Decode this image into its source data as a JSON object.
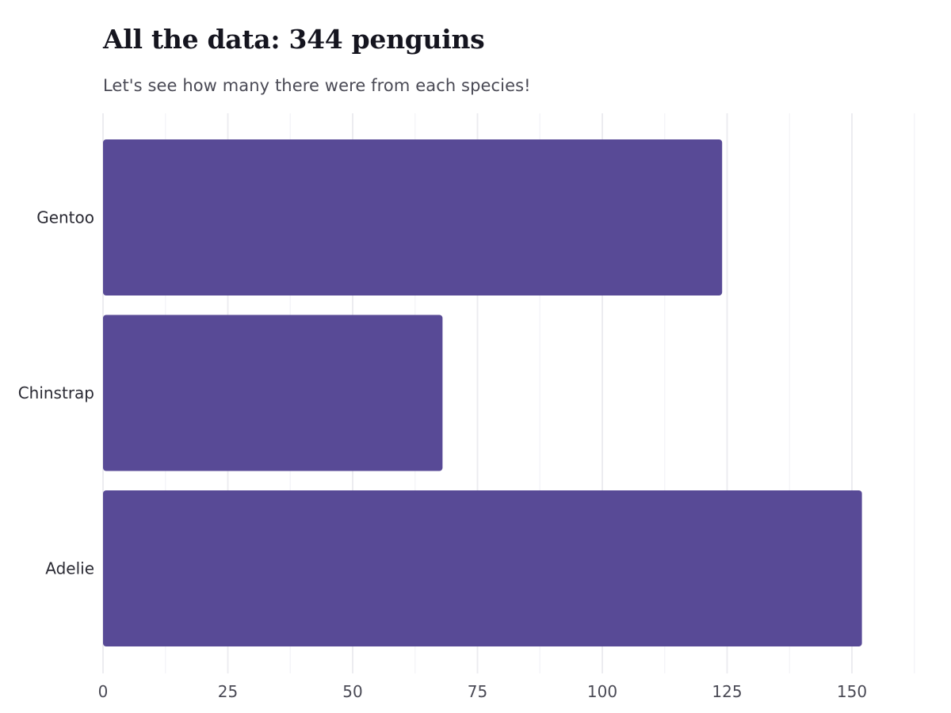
{
  "chart_data": {
    "type": "bar",
    "orientation": "horizontal",
    "title": "All the data: 344 penguins",
    "subtitle": "Let's see how many there were from each species!",
    "xlabel": "",
    "ylabel": "",
    "categories": [
      "Gentoo",
      "Chinstrap",
      "Adelie"
    ],
    "values": [
      124,
      68,
      152
    ],
    "xlim": [
      0,
      165
    ],
    "xticks": [
      0,
      25,
      50,
      75,
      100,
      125,
      150
    ],
    "xtick_labels": [
      "0",
      "25",
      "50",
      "75",
      "100",
      "125",
      "150"
    ],
    "grid": "vertical",
    "legend": "none",
    "colors": {
      "bar": "#584a96",
      "grid_major": "#ececf0",
      "grid_minor": "#f5f5f8"
    }
  }
}
